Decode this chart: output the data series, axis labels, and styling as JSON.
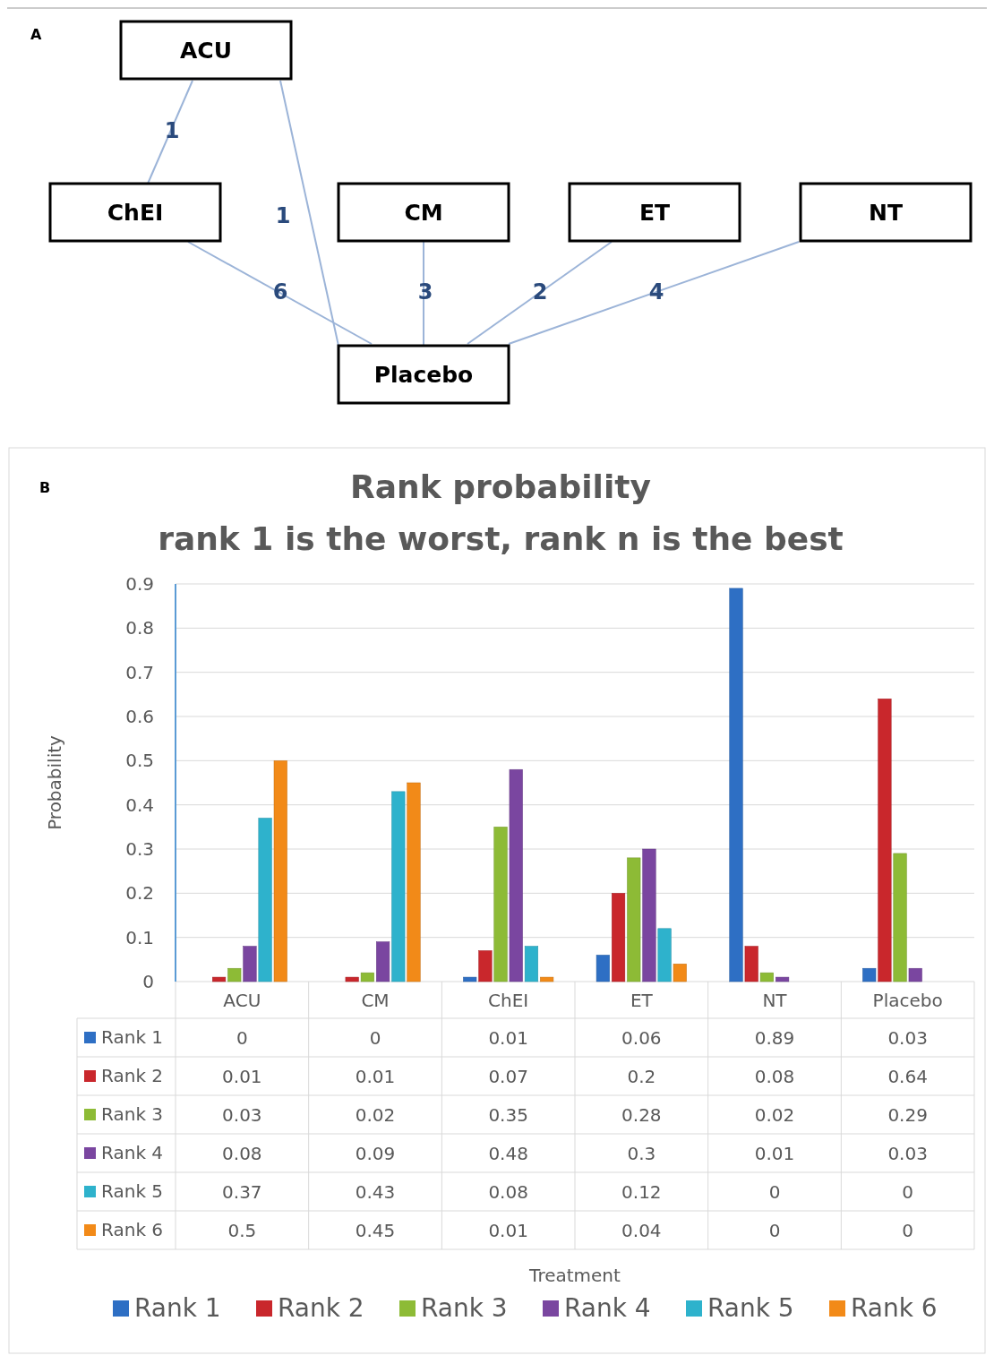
{
  "chart_data": [
    {
      "type": "other",
      "title": "A",
      "categories": [
        "ACU",
        "ChEI",
        "CM",
        "ET",
        "NT",
        "Placebo"
      ],
      "annotations": [
        "1",
        "1",
        "6",
        "3",
        "2",
        "4"
      ]
    },
    {
      "type": "bar",
      "title": "Rank probability",
      "subtitle": "rank 1 is the worst, rank n is the best",
      "annotations": [
        "B"
      ],
      "xlabel": "Treatment",
      "ylabel": "Probability",
      "categories": [
        "ACU",
        "CM",
        "ChEI",
        "ET",
        "NT",
        "Placebo"
      ],
      "series": [
        {
          "name": "Rank 1",
          "color": "#2e6fc4",
          "values": [
            0,
            0,
            0.01,
            0.06,
            0.89,
            0.03
          ]
        },
        {
          "name": "Rank 2",
          "color": "#c9272c",
          "values": [
            0.01,
            0.01,
            0.07,
            0.2,
            0.08,
            0.64
          ]
        },
        {
          "name": "Rank 3",
          "color": "#8dbb36",
          "values": [
            0.03,
            0.02,
            0.35,
            0.28,
            0.02,
            0.29
          ]
        },
        {
          "name": "Rank 4",
          "color": "#7a46a0",
          "values": [
            0.08,
            0.09,
            0.48,
            0.3,
            0.01,
            0.03
          ]
        },
        {
          "name": "Rank 5",
          "color": "#2eb2cc",
          "values": [
            0.37,
            0.43,
            0.08,
            0.12,
            0,
            0
          ]
        },
        {
          "name": "Rank 6",
          "color": "#f28a18",
          "values": [
            0.5,
            0.45,
            0.01,
            0.04,
            0,
            0
          ]
        }
      ],
      "ylim": [
        0,
        0.9
      ],
      "yticks": [
        0,
        0.1,
        0.2,
        0.3,
        0.4,
        0.5,
        0.6,
        0.7,
        0.8,
        0.9
      ],
      "grid": "y",
      "legend": "bottom",
      "data_labels": true
    }
  ]
}
